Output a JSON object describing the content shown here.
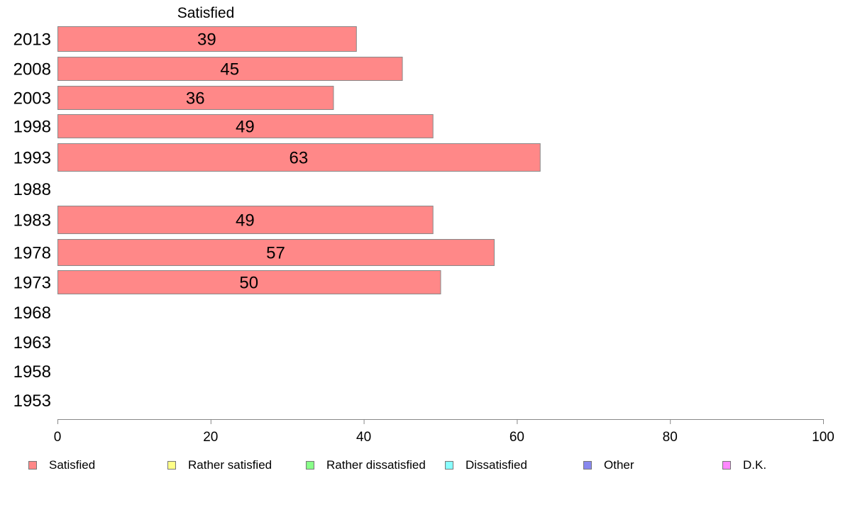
{
  "chart_data": {
    "type": "bar",
    "orientation": "horizontal",
    "series_title": "Satisfied",
    "categories": [
      "2013",
      "2008",
      "2003",
      "1998",
      "1993",
      "1988",
      "1983",
      "1978",
      "1973",
      "1968",
      "1963",
      "1958",
      "1953"
    ],
    "series": [
      {
        "name": "Satisfied",
        "color": "#ff8888",
        "values": [
          39,
          45,
          36,
          49,
          63,
          null,
          49,
          57,
          50,
          null,
          null,
          null,
          null
        ],
        "labels": [
          "39",
          "45",
          "36",
          "49",
          "63",
          "",
          "49",
          "57",
          "50",
          "",
          "",
          "",
          ""
        ]
      }
    ],
    "xlim": [
      0,
      100
    ],
    "xticks": [
      0,
      20,
      40,
      60,
      80,
      100
    ],
    "xtick_labels": [
      "0",
      "20",
      "40",
      "60",
      "80",
      "100"
    ],
    "grid": false,
    "legend_position": "bottom",
    "legend": [
      {
        "label": "Satisfied",
        "color": "#ff8888"
      },
      {
        "label": "Rather satisfied",
        "color": "#ffff88"
      },
      {
        "label": "Rather dissatisfied",
        "color": "#88ff88"
      },
      {
        "label": "Dissatisfied",
        "color": "#88ffff"
      },
      {
        "label": "Other",
        "color": "#8888ee"
      },
      {
        "label": "D.K.",
        "color": "#ff88ff"
      }
    ]
  }
}
